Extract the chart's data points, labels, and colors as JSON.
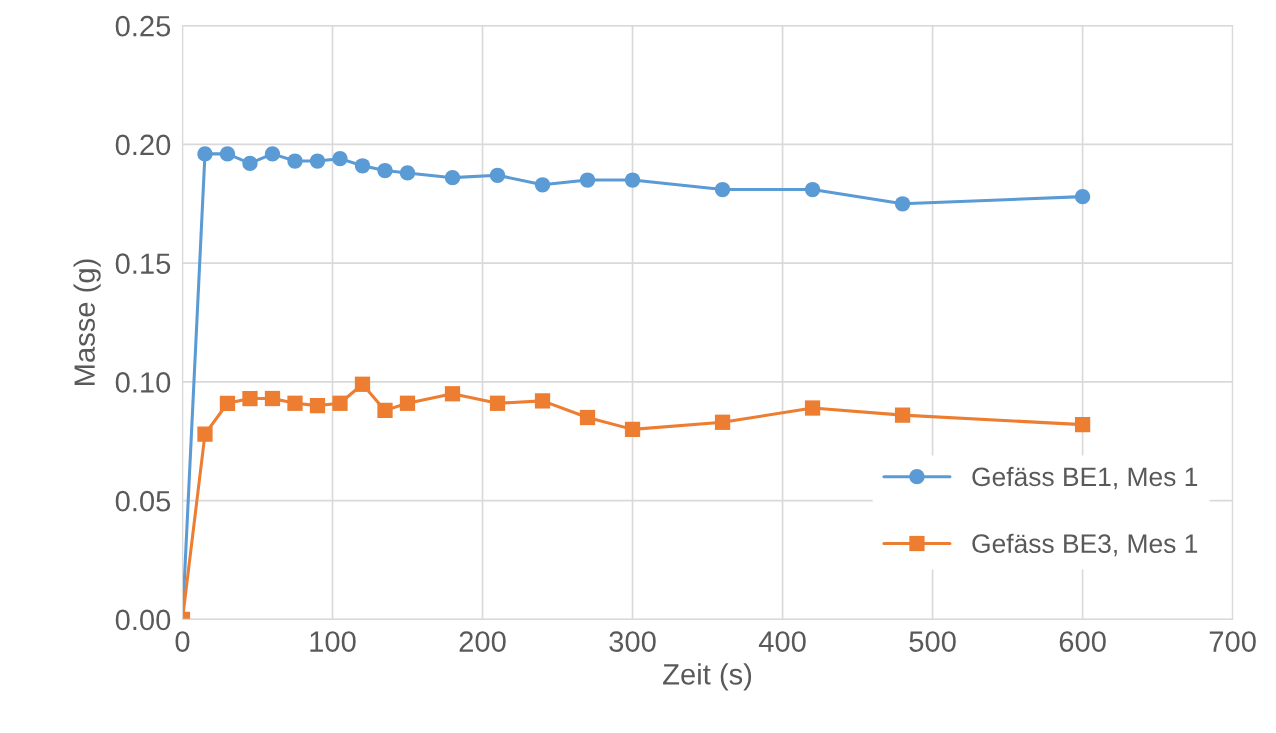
{
  "chart_data": {
    "type": "line",
    "xlabel": "Zeit (s)",
    "ylabel": "Masse (g)",
    "x": [
      0,
      15,
      30,
      45,
      60,
      75,
      90,
      105,
      120,
      135,
      150,
      180,
      210,
      240,
      270,
      300,
      360,
      420,
      480,
      600
    ],
    "series": [
      {
        "name": "Gefäss BE1, Mes 1",
        "color": "#5b9bd5",
        "marker": "circle",
        "values": [
          0,
          0.196,
          0.196,
          0.192,
          0.196,
          0.193,
          0.193,
          0.194,
          0.191,
          0.189,
          0.188,
          0.186,
          0.187,
          0.183,
          0.185,
          0.185,
          0.181,
          0.181,
          0.175,
          0.178
        ]
      },
      {
        "name": "Gefäss BE3, Mes 1",
        "color": "#ed7d31",
        "marker": "square",
        "values": [
          0,
          0.078,
          0.091,
          0.093,
          0.093,
          0.091,
          0.09,
          0.091,
          0.099,
          0.088,
          0.091,
          0.095,
          0.091,
          0.092,
          0.085,
          0.08,
          0.083,
          0.089,
          0.086,
          0.082
        ]
      }
    ],
    "xlim": [
      0,
      700
    ],
    "xticks": [
      0,
      100,
      200,
      300,
      400,
      500,
      600,
      700
    ],
    "ylim": [
      0,
      0.25
    ],
    "yticks": [
      {
        "value": 0,
        "label": "0.00"
      },
      {
        "value": 0.05,
        "label": "0.05"
      },
      {
        "value": 0.1,
        "label": "0.10"
      },
      {
        "value": 0.15,
        "label": "0.15"
      },
      {
        "value": 0.2,
        "label": "0.20"
      },
      {
        "value": 0.25,
        "label": "0.25"
      }
    ],
    "grid": true,
    "legend": "right",
    "line_style": "solid"
  }
}
